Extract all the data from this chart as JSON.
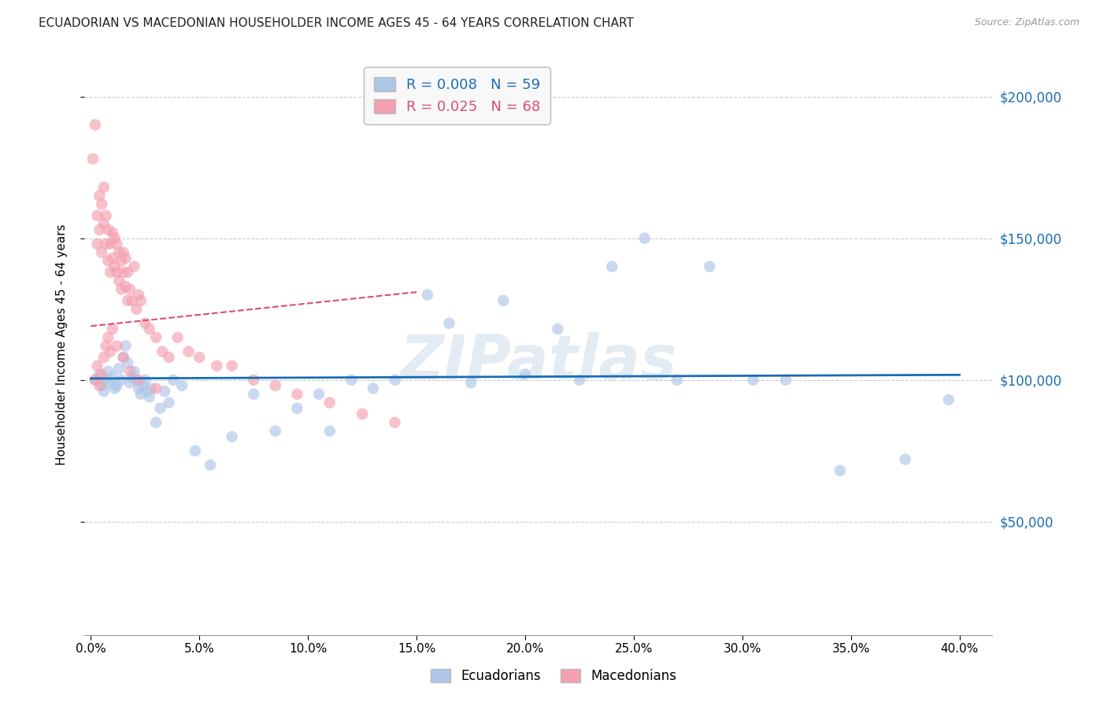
{
  "title": "ECUADORIAN VS MACEDONIAN HOUSEHOLDER INCOME AGES 45 - 64 YEARS CORRELATION CHART",
  "source": "Source: ZipAtlas.com",
  "ylabel": "Householder Income Ages 45 - 64 years",
  "xlabel_ticks": [
    "0.0%",
    "5.0%",
    "10.0%",
    "15.0%",
    "20.0%",
    "25.0%",
    "30.0%",
    "35.0%",
    "40.0%"
  ],
  "xlabel_vals": [
    0.0,
    0.05,
    0.1,
    0.15,
    0.2,
    0.25,
    0.3,
    0.35,
    0.4
  ],
  "ytick_labels": [
    "$50,000",
    "$100,000",
    "$150,000",
    "$200,000"
  ],
  "ytick_vals": [
    50000,
    100000,
    150000,
    200000
  ],
  "ylim": [
    10000,
    215000
  ],
  "xlim": [
    -0.003,
    0.415
  ],
  "background_color": "#ffffff",
  "grid_color": "#cccccc",
  "ecu_color": "#aec6e8",
  "mac_color": "#f4a0b0",
  "ecu_line_color": "#1a6db5",
  "mac_line_color": "#d94f6e",
  "ecu_R": 0.008,
  "ecu_N": 59,
  "mac_R": 0.025,
  "mac_N": 68,
  "marker_size": 110,
  "marker_alpha": 0.65,
  "ecuadorian_x": [
    0.002,
    0.004,
    0.005,
    0.006,
    0.007,
    0.008,
    0.009,
    0.01,
    0.011,
    0.012,
    0.013,
    0.014,
    0.015,
    0.016,
    0.017,
    0.018,
    0.019,
    0.02,
    0.021,
    0.022,
    0.023,
    0.024,
    0.025,
    0.026,
    0.027,
    0.028,
    0.03,
    0.032,
    0.034,
    0.036,
    0.038,
    0.042,
    0.048,
    0.055,
    0.065,
    0.075,
    0.085,
    0.095,
    0.105,
    0.11,
    0.12,
    0.13,
    0.14,
    0.155,
    0.165,
    0.175,
    0.19,
    0.2,
    0.215,
    0.225,
    0.24,
    0.255,
    0.27,
    0.285,
    0.305,
    0.32,
    0.345,
    0.375,
    0.395
  ],
  "ecuadorian_y": [
    100000,
    102000,
    98000,
    96000,
    100000,
    103000,
    99000,
    101000,
    97000,
    98000,
    104000,
    100000,
    108000,
    112000,
    106000,
    99000,
    101000,
    103000,
    100000,
    97000,
    95000,
    98000,
    100000,
    96000,
    94000,
    97000,
    85000,
    90000,
    96000,
    92000,
    100000,
    98000,
    75000,
    70000,
    80000,
    95000,
    82000,
    90000,
    95000,
    82000,
    100000,
    97000,
    100000,
    130000,
    120000,
    99000,
    128000,
    102000,
    118000,
    100000,
    140000,
    150000,
    100000,
    140000,
    100000,
    100000,
    68000,
    72000,
    93000
  ],
  "macedonian_x": [
    0.001,
    0.002,
    0.003,
    0.003,
    0.004,
    0.004,
    0.005,
    0.005,
    0.006,
    0.006,
    0.007,
    0.007,
    0.008,
    0.008,
    0.009,
    0.009,
    0.01,
    0.01,
    0.011,
    0.011,
    0.012,
    0.012,
    0.013,
    0.013,
    0.014,
    0.014,
    0.015,
    0.015,
    0.016,
    0.016,
    0.017,
    0.017,
    0.018,
    0.019,
    0.02,
    0.021,
    0.022,
    0.023,
    0.025,
    0.027,
    0.03,
    0.033,
    0.036,
    0.04,
    0.045,
    0.05,
    0.058,
    0.065,
    0.075,
    0.085,
    0.095,
    0.11,
    0.125,
    0.14,
    0.002,
    0.003,
    0.004,
    0.005,
    0.006,
    0.007,
    0.008,
    0.009,
    0.01,
    0.012,
    0.015,
    0.018,
    0.022,
    0.03
  ],
  "macedonian_y": [
    178000,
    190000,
    148000,
    158000,
    153000,
    165000,
    145000,
    162000,
    155000,
    168000,
    148000,
    158000,
    142000,
    153000,
    138000,
    148000,
    143000,
    152000,
    140000,
    150000,
    138000,
    148000,
    135000,
    145000,
    132000,
    142000,
    138000,
    145000,
    133000,
    143000,
    128000,
    138000,
    132000,
    128000,
    140000,
    125000,
    130000,
    128000,
    120000,
    118000,
    115000,
    110000,
    108000,
    115000,
    110000,
    108000,
    105000,
    105000,
    100000,
    98000,
    95000,
    92000,
    88000,
    85000,
    100000,
    105000,
    98000,
    102000,
    108000,
    112000,
    115000,
    110000,
    118000,
    112000,
    108000,
    103000,
    100000,
    97000
  ],
  "ecu_trend_x": [
    0.0,
    0.4
  ],
  "ecu_trend_y": [
    100500,
    101800
  ],
  "mac_trend_x": [
    0.0,
    0.15
  ],
  "mac_trend_y": [
    119000,
    131000
  ],
  "zipatlas_watermark": "ZIPatlas",
  "legend_box_color": "#f8f8f8",
  "legend_border_color": "#bbbbbb"
}
